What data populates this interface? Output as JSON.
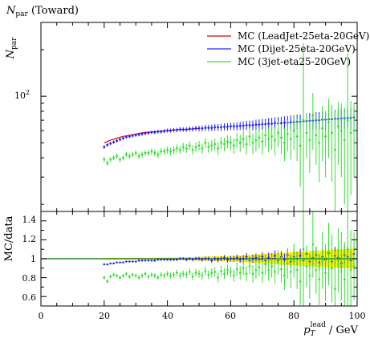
{
  "chart_data": [
    {
      "type": "line",
      "title": "N_par (Toward)",
      "title_main": "N",
      "title_sub": "par",
      "title_tail": " (Toward)",
      "ylabel_main": "N",
      "ylabel_sub": "par",
      "y_tick_base": "10",
      "y_tick_exp": "2",
      "y_scale": "log",
      "ylim": [
        18,
        300
      ],
      "xlim": [
        0,
        100
      ],
      "legend_position": "top-right",
      "series": [
        {
          "name": "MC (LeadJet-25eta-20GeV)",
          "color": "#e00000",
          "style": "line",
          "x": [
            20,
            22,
            24,
            26,
            28,
            30,
            32,
            34,
            36,
            38,
            40,
            42,
            44,
            46,
            48,
            50
          ],
          "y": [
            50,
            52,
            53.5,
            55,
            56,
            57,
            58,
            58.5,
            59,
            59.5,
            60,
            60.5,
            61,
            61,
            61.5,
            62
          ]
        },
        {
          "name": "MC (Dijet-25eta-20GeV)",
          "color": "#2020ff",
          "style": "points",
          "x": [
            20,
            21,
            22,
            23,
            24,
            25,
            26,
            27,
            28,
            29,
            30,
            31,
            32,
            33,
            34,
            35,
            36,
            37,
            38,
            39,
            40,
            41,
            42,
            43,
            44,
            45,
            46,
            47,
            48,
            49,
            50,
            51,
            52,
            53,
            54,
            55,
            56,
            57,
            58,
            59,
            60,
            61,
            62,
            63,
            64,
            65,
            66,
            67,
            68,
            69,
            70,
            71,
            72,
            73,
            74,
            75,
            76,
            77,
            78,
            79,
            80,
            81,
            82,
            83,
            84,
            85,
            86,
            87,
            88,
            89,
            90,
            91,
            92,
            93,
            94,
            95,
            96,
            97,
            98,
            99
          ],
          "y": [
            47,
            48.5,
            49.5,
            50.5,
            51.5,
            52.5,
            53.5,
            54.5,
            55,
            55.5,
            56,
            56.5,
            57,
            57.5,
            58,
            58.5,
            58.5,
            59,
            59,
            59.5,
            60,
            60,
            60.5,
            60.5,
            61,
            61,
            61,
            61.5,
            61.5,
            62,
            62,
            62,
            62.5,
            62.5,
            62.5,
            63,
            63,
            63,
            63.5,
            63.5,
            64,
            64,
            64,
            64.5,
            64.5,
            65,
            65,
            65,
            65.5,
            65.5,
            66,
            66,
            66.5,
            66.5,
            67,
            67,
            67,
            67.5,
            67.5,
            68,
            68,
            68.5,
            68.5,
            69,
            69,
            69.5,
            69.5,
            70,
            70,
            70.5,
            70.5,
            71,
            71,
            71.5,
            71.5,
            72,
            72,
            72.5,
            72.5,
            73
          ],
          "err": [
            1.2,
            1.2,
            1.2,
            1.2,
            1.2,
            1.2,
            1.3,
            1.3,
            1.3,
            1.3,
            1.3,
            1.4,
            1.4,
            1.5,
            1.5,
            1.5,
            1.6,
            1.6,
            1.7,
            1.7,
            1.8,
            1.8,
            1.9,
            1.9,
            2,
            2,
            2.1,
            2.2,
            2.3,
            2.4,
            2.5,
            2.6,
            2.7,
            2.8,
            2.9,
            3,
            3.1,
            3.2,
            3.3,
            3.4,
            3.5,
            3.6,
            3.8,
            4,
            4.2,
            4.4,
            4.6,
            4.8,
            5,
            5.2,
            5.4,
            5.6,
            5.8,
            6,
            6.2,
            6.4,
            6.6,
            6.8,
            7,
            7.2,
            7.4,
            7.6,
            7.8,
            8,
            8.2,
            8.4,
            8.6,
            8.8,
            9,
            9.2,
            9.4,
            9.6,
            9.8,
            10,
            10.2,
            10.4,
            10.6,
            10.8,
            11,
            11.2
          ]
        },
        {
          "name": "MC (3jet-eta25-20GeV)",
          "color": "#33dd33",
          "style": "points",
          "x": [
            20,
            21,
            22,
            23,
            24,
            25,
            26,
            27,
            28,
            29,
            30,
            31,
            32,
            33,
            34,
            35,
            36,
            37,
            38,
            39,
            40,
            41,
            42,
            43,
            44,
            45,
            46,
            47,
            48,
            49,
            50,
            51,
            52,
            53,
            54,
            55,
            56,
            57,
            58,
            59,
            60,
            61,
            62,
            63,
            64,
            65,
            66,
            67,
            68,
            69,
            70,
            71,
            72,
            73,
            74,
            75,
            76,
            77,
            78,
            79,
            80,
            81,
            82,
            83,
            84,
            85,
            86,
            87,
            88,
            89,
            90,
            91,
            92,
            93,
            94,
            95,
            96,
            97,
            98,
            99
          ],
          "y": [
            39,
            37,
            39,
            40,
            41,
            39,
            40,
            42,
            41,
            42,
            43,
            41,
            42,
            43,
            43,
            44,
            43,
            42,
            44,
            44,
            45,
            44,
            45,
            46,
            45,
            47,
            46,
            48,
            45,
            47,
            48,
            46,
            50,
            47,
            48,
            49,
            46,
            50,
            49,
            51,
            50,
            48,
            52,
            50,
            53,
            49,
            55,
            50,
            52,
            54,
            51,
            56,
            53,
            55,
            52,
            58,
            54,
            50,
            57,
            53,
            60,
            55,
            48,
            70,
            58,
            52,
            75,
            56,
            50,
            62,
            55,
            68,
            58,
            45,
            64,
            60,
            52,
            70,
            58,
            60
          ],
          "err": [
            1.5,
            1.5,
            1.5,
            1.5,
            1.6,
            1.6,
            1.6,
            1.6,
            1.7,
            1.7,
            1.8,
            1.8,
            1.9,
            1.9,
            2,
            2,
            2.1,
            2.1,
            2.2,
            2.3,
            2.4,
            2.5,
            2.6,
            2.7,
            2.8,
            2.9,
            3,
            3.1,
            3.2,
            3.3,
            3.4,
            3.5,
            3.6,
            3.8,
            4,
            4.2,
            4.4,
            4.6,
            4.8,
            5,
            5.3,
            5.6,
            5.9,
            6.2,
            6.5,
            6.8,
            7.2,
            7.6,
            8,
            8.4,
            8.8,
            9.2,
            9.6,
            10,
            10.5,
            11,
            11.5,
            12,
            13,
            14,
            15,
            17,
            22,
            150,
            18,
            20,
            30,
            20,
            22,
            24,
            25,
            28,
            30,
            35,
            28,
            30,
            32,
            120,
            35,
            30
          ]
        }
      ]
    },
    {
      "type": "line",
      "ylabel": "MC/data",
      "xlabel_main": "p",
      "xlabel_sub": "T",
      "xlabel_sup": "lead",
      "xlabel_tail": " / GeV",
      "xlim": [
        0,
        100
      ],
      "ylim": [
        0.5,
        1.5
      ],
      "x_ticks": [
        "0",
        "20",
        "40",
        "60",
        "80",
        "100"
      ],
      "y_ticks": [
        "0.6",
        "0.8",
        "1",
        "1.2",
        "1.4"
      ],
      "band_color": "#ffee00",
      "series": [
        {
          "name": "MC (Dijet-25eta-20GeV)",
          "color": "#2020ff",
          "x": [
            20,
            21,
            22,
            23,
            24,
            25,
            26,
            27,
            28,
            29,
            30,
            31,
            32,
            33,
            34,
            35,
            36,
            37,
            38,
            39,
            40,
            41,
            42,
            43,
            44,
            45,
            46,
            47,
            48,
            49,
            50,
            51,
            52,
            53,
            54,
            55,
            56,
            57,
            58,
            59,
            60,
            61,
            62,
            63,
            64,
            65,
            66,
            67,
            68,
            69,
            70,
            71,
            72,
            73,
            74,
            75,
            76,
            77,
            78,
            79,
            80,
            81,
            82,
            83,
            84,
            85,
            86,
            87,
            88,
            89,
            90,
            91,
            92,
            93,
            94,
            95,
            96,
            97,
            98,
            99
          ],
          "y": [
            0.94,
            0.94,
            0.95,
            0.95,
            0.96,
            0.96,
            0.96,
            0.97,
            0.97,
            0.97,
            0.97,
            0.98,
            0.98,
            0.98,
            0.98,
            0.98,
            0.98,
            0.99,
            0.99,
            0.99,
            0.99,
            0.99,
            0.99,
            0.99,
            1.0,
            1.0,
            0.99,
            1.0,
            0.99,
            1.0,
            1.0,
            0.99,
            1.0,
            1.0,
            0.98,
            1.0,
            0.99,
            1.0,
            1.01,
            0.99,
            1.0,
            1.0,
            1.01,
            0.99,
            1.0,
            1.02,
            0.98,
            1.0,
            1.01,
            0.99,
            1.02,
            0.98,
            1.01,
            1.0,
            1.03,
            0.98,
            1.02,
            0.99,
            1.04,
            0.97,
            1.02,
            1.0,
            1.03,
            0.98,
            1.05,
            0.97,
            1.01,
            1.04,
            0.96,
            1.02,
            0.99,
            1.06,
            0.97,
            1.03,
            1.01,
            0.95,
            1.04,
            1.02,
            0.98,
            1.05
          ],
          "err": [
            0.01,
            0.01,
            0.01,
            0.01,
            0.01,
            0.01,
            0.01,
            0.01,
            0.01,
            0.01,
            0.01,
            0.01,
            0.01,
            0.01,
            0.01,
            0.01,
            0.012,
            0.012,
            0.012,
            0.012,
            0.013,
            0.013,
            0.014,
            0.014,
            0.015,
            0.015,
            0.016,
            0.016,
            0.017,
            0.018,
            0.02,
            0.021,
            0.022,
            0.023,
            0.024,
            0.025,
            0.026,
            0.027,
            0.028,
            0.029,
            0.03,
            0.031,
            0.033,
            0.035,
            0.037,
            0.039,
            0.041,
            0.043,
            0.045,
            0.047,
            0.05,
            0.052,
            0.054,
            0.056,
            0.058,
            0.06,
            0.062,
            0.064,
            0.066,
            0.068,
            0.07,
            0.072,
            0.074,
            0.076,
            0.078,
            0.08,
            0.082,
            0.084,
            0.086,
            0.088,
            0.09,
            0.092,
            0.094,
            0.096,
            0.098,
            0.1,
            0.102,
            0.104,
            0.106,
            0.108
          ]
        },
        {
          "name": "MC (3jet-eta25-20GeV)",
          "color": "#33dd33",
          "x": [
            20,
            21,
            22,
            23,
            24,
            25,
            26,
            27,
            28,
            29,
            30,
            31,
            32,
            33,
            34,
            35,
            36,
            37,
            38,
            39,
            40,
            41,
            42,
            43,
            44,
            45,
            46,
            47,
            48,
            49,
            50,
            51,
            52,
            53,
            54,
            55,
            56,
            57,
            58,
            59,
            60,
            61,
            62,
            63,
            64,
            65,
            66,
            67,
            68,
            69,
            70,
            71,
            72,
            73,
            74,
            75,
            76,
            77,
            78,
            79,
            80,
            81,
            82,
            83,
            84,
            85,
            86,
            87,
            88,
            89,
            90,
            91,
            92,
            93,
            94,
            95,
            96,
            97,
            98,
            99
          ],
          "y": [
            0.8,
            0.76,
            0.81,
            0.83,
            0.82,
            0.8,
            0.82,
            0.84,
            0.81,
            0.83,
            0.82,
            0.8,
            0.82,
            0.84,
            0.81,
            0.83,
            0.82,
            0.8,
            0.83,
            0.82,
            0.84,
            0.82,
            0.83,
            0.85,
            0.82,
            0.84,
            0.83,
            0.86,
            0.81,
            0.85,
            0.84,
            0.82,
            0.87,
            0.83,
            0.85,
            0.86,
            0.8,
            0.87,
            0.84,
            0.88,
            0.86,
            0.82,
            0.89,
            0.85,
            0.9,
            0.84,
            0.92,
            0.84,
            0.88,
            0.91,
            0.85,
            0.94,
            0.88,
            0.92,
            0.86,
            0.96,
            0.89,
            0.82,
            0.95,
            0.86,
            0.98,
            0.88,
            0.76,
            1.1,
            0.92,
            0.82,
            1.15,
            0.88,
            0.78,
            0.98,
            0.85,
            1.05,
            0.9,
            0.68,
            0.98,
            0.92,
            0.78,
            1.1,
            0.88,
            0.92
          ],
          "err": [
            0.02,
            0.02,
            0.02,
            0.02,
            0.02,
            0.02,
            0.02,
            0.02,
            0.022,
            0.022,
            0.023,
            0.023,
            0.024,
            0.024,
            0.025,
            0.025,
            0.026,
            0.026,
            0.027,
            0.028,
            0.03,
            0.031,
            0.032,
            0.033,
            0.034,
            0.035,
            0.036,
            0.037,
            0.038,
            0.039,
            0.04,
            0.042,
            0.044,
            0.046,
            0.048,
            0.05,
            0.052,
            0.054,
            0.056,
            0.058,
            0.06,
            0.064,
            0.068,
            0.072,
            0.076,
            0.08,
            0.085,
            0.09,
            0.095,
            0.1,
            0.105,
            0.11,
            0.115,
            0.12,
            0.125,
            0.13,
            0.14,
            0.15,
            0.16,
            0.17,
            0.18,
            0.2,
            0.25,
            1.2,
            0.22,
            0.24,
            0.35,
            0.25,
            0.27,
            0.3,
            0.3,
            0.33,
            0.36,
            0.4,
            0.34,
            0.36,
            0.4,
            1.0,
            0.42,
            0.36
          ]
        }
      ]
    }
  ]
}
